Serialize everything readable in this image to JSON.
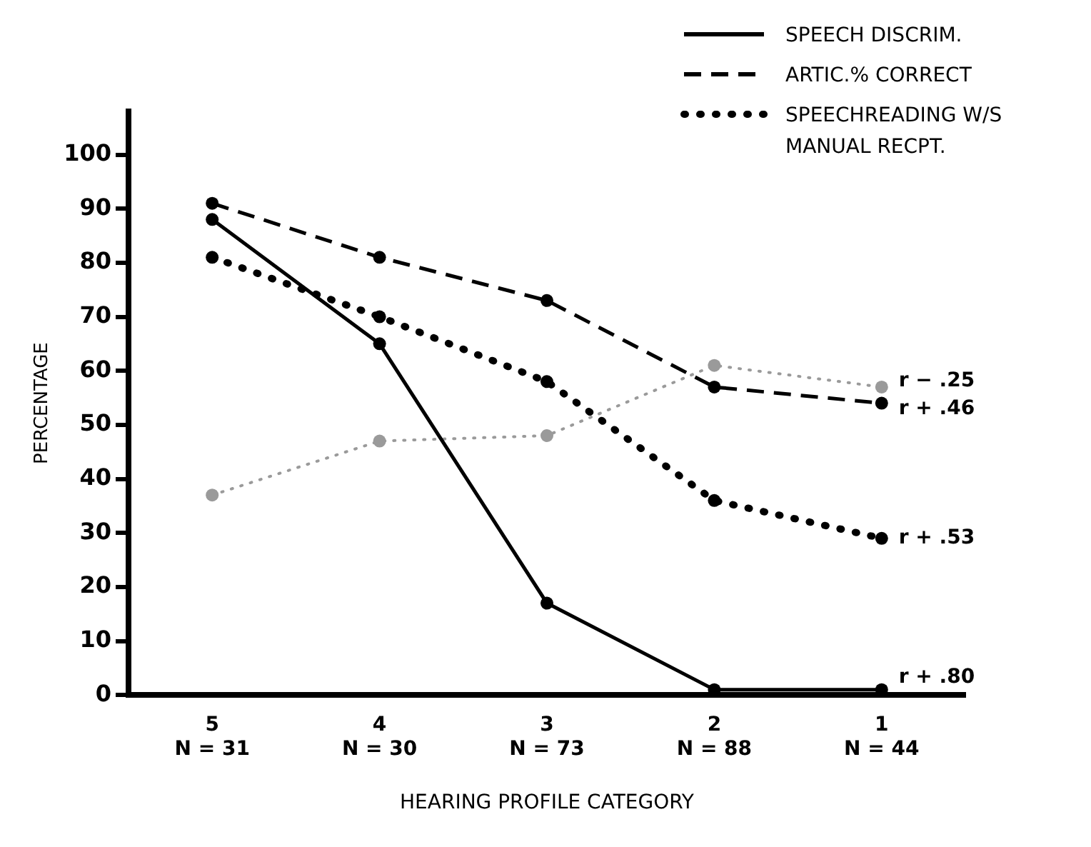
{
  "chart_data": {
    "type": "line",
    "xlabel": "HEARING PROFILE CATEGORY",
    "ylabel": "PERCENTAGE",
    "categories": [
      "5\nN = 31",
      "4\nN = 30",
      "3\nN = 73",
      "2\nN = 88",
      "1\nN = 44"
    ],
    "ylim": [
      0,
      108
    ],
    "yticks": [
      0,
      10,
      20,
      30,
      40,
      50,
      60,
      70,
      80,
      90,
      100
    ],
    "grid": false,
    "legend": "top right",
    "marker": "circle",
    "series": [
      {
        "name": "SPEECH DISCRIM.",
        "color": "#000000",
        "line_style": "solid",
        "values": [
          88,
          65,
          17,
          1,
          1
        ]
      },
      {
        "name": "ARTIC.% CORRECT",
        "color": "#000000",
        "line_style": "dashed",
        "values": [
          91,
          81,
          73,
          57,
          54
        ]
      },
      {
        "name": "SPEECHREADING W/S MANUAL RECPT.",
        "color": "#000000",
        "line_style": "dotted",
        "values": [
          81,
          70,
          58,
          36,
          29
        ]
      },
      {
        "color": "#9a9a9a",
        "line_style": "dotted",
        "values": [
          37,
          47,
          48,
          61,
          57
        ]
      }
    ],
    "annotations": [
      {
        "text": "r − .25",
        "x": "1\nN = 44",
        "y": 57
      },
      {
        "text": "r + .46",
        "x": "1\nN = 44",
        "y": 54
      },
      {
        "text": "r + .53",
        "x": "1\nN = 44",
        "y": 29
      },
      {
        "text": "r + .80",
        "x": "1\nN = 44",
        "y": 1
      }
    ]
  }
}
